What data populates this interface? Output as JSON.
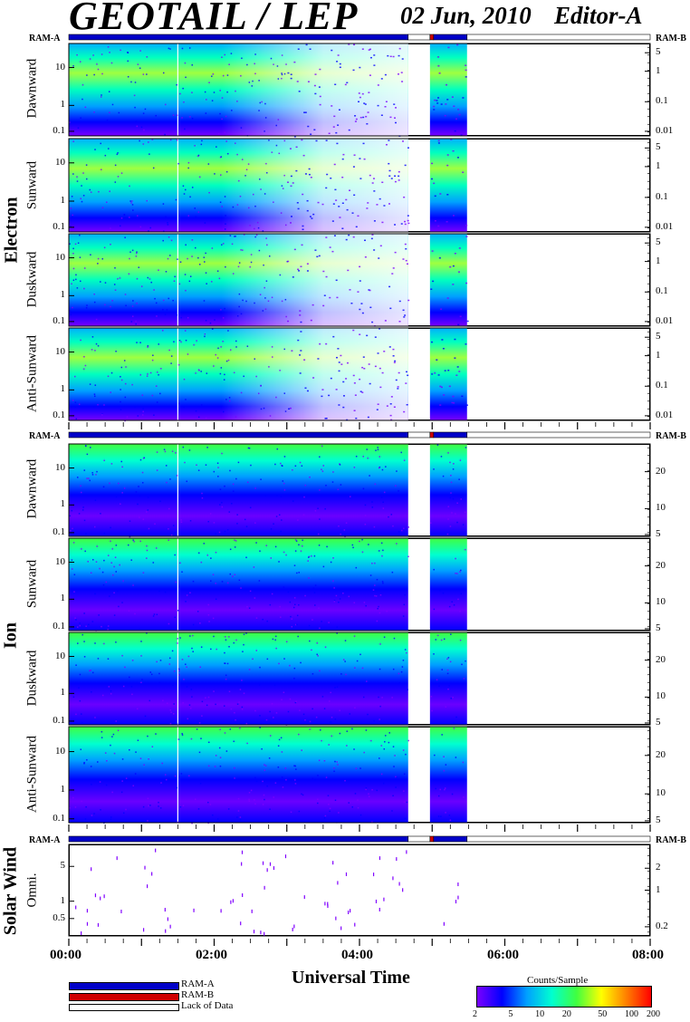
{
  "header": {
    "title": "GEOTAIL / LEP",
    "date": "02 Jun, 2010",
    "editor": "Editor-A"
  },
  "ram": {
    "a": "RAM-A",
    "b": "RAM-B"
  },
  "groups": {
    "electron": "Electron",
    "ion": "Ion",
    "solar_wind": "Solar Wind"
  },
  "panel_labels": [
    "Dawnward",
    "Sunward",
    "Duskward",
    "Anti-Sunward",
    "Dawnward",
    "Sunward",
    "Duskward",
    "Anti-Sunward",
    "Omni."
  ],
  "electron_left_ticks": [
    "10",
    "1",
    "0.1"
  ],
  "electron_right_ticks": [
    "5",
    "1",
    "0.1",
    "0.01"
  ],
  "ion_left_ticks": [
    "10",
    "1",
    "0.1"
  ],
  "ion_right_ticks": [
    "20",
    "10",
    "5"
  ],
  "sw_left_ticks": [
    "5",
    "1",
    "0.5"
  ],
  "sw_right_ticks": [
    "2",
    "1",
    "0.2"
  ],
  "x_axis": {
    "label": "Universal Time",
    "ticks": [
      "00:00",
      "02:00",
      "04:00",
      "06:00",
      "08:00"
    ]
  },
  "legend": {
    "ram_a": "RAM-A",
    "ram_b": "RAM-B",
    "lack": "Lack of Data"
  },
  "colorbar": {
    "title": "Counts/Sample",
    "ticks": [
      "2",
      "5",
      "10",
      "20",
      "50",
      "100",
      "200"
    ],
    "colors": [
      "#7a00ff",
      "#0000ff",
      "#00a0ff",
      "#00ffd0",
      "#40ff40",
      "#ffff00",
      "#ff8000",
      "#ff0000"
    ]
  },
  "chart_data": {
    "type": "heatmap",
    "title": "GEOTAIL / LEP",
    "xlabel": "Universal Time",
    "x_range_hours": [
      0,
      8
    ],
    "data_coverage_hours": [
      [
        0,
        4.67
      ],
      [
        4.97,
        5.48
      ]
    ],
    "data_gap_hours": [
      [
        4.67,
        4.97
      ],
      [
        5.48,
        8
      ]
    ],
    "ram_bar": [
      {
        "state": "RAM-A",
        "hours": [
          0,
          4.67
        ]
      },
      {
        "state": "Lack of Data",
        "hours": [
          4.67,
          4.97
        ]
      },
      {
        "state": "RAM-B",
        "hours": [
          4.97,
          5.02
        ]
      },
      {
        "state": "RAM-A",
        "hours": [
          5.02,
          5.48
        ]
      },
      {
        "state": "Lack of Data",
        "hours": [
          5.48,
          8
        ]
      }
    ],
    "colorbar_range": [
      2,
      200
    ],
    "colorbar_label": "Counts/Sample"
  }
}
